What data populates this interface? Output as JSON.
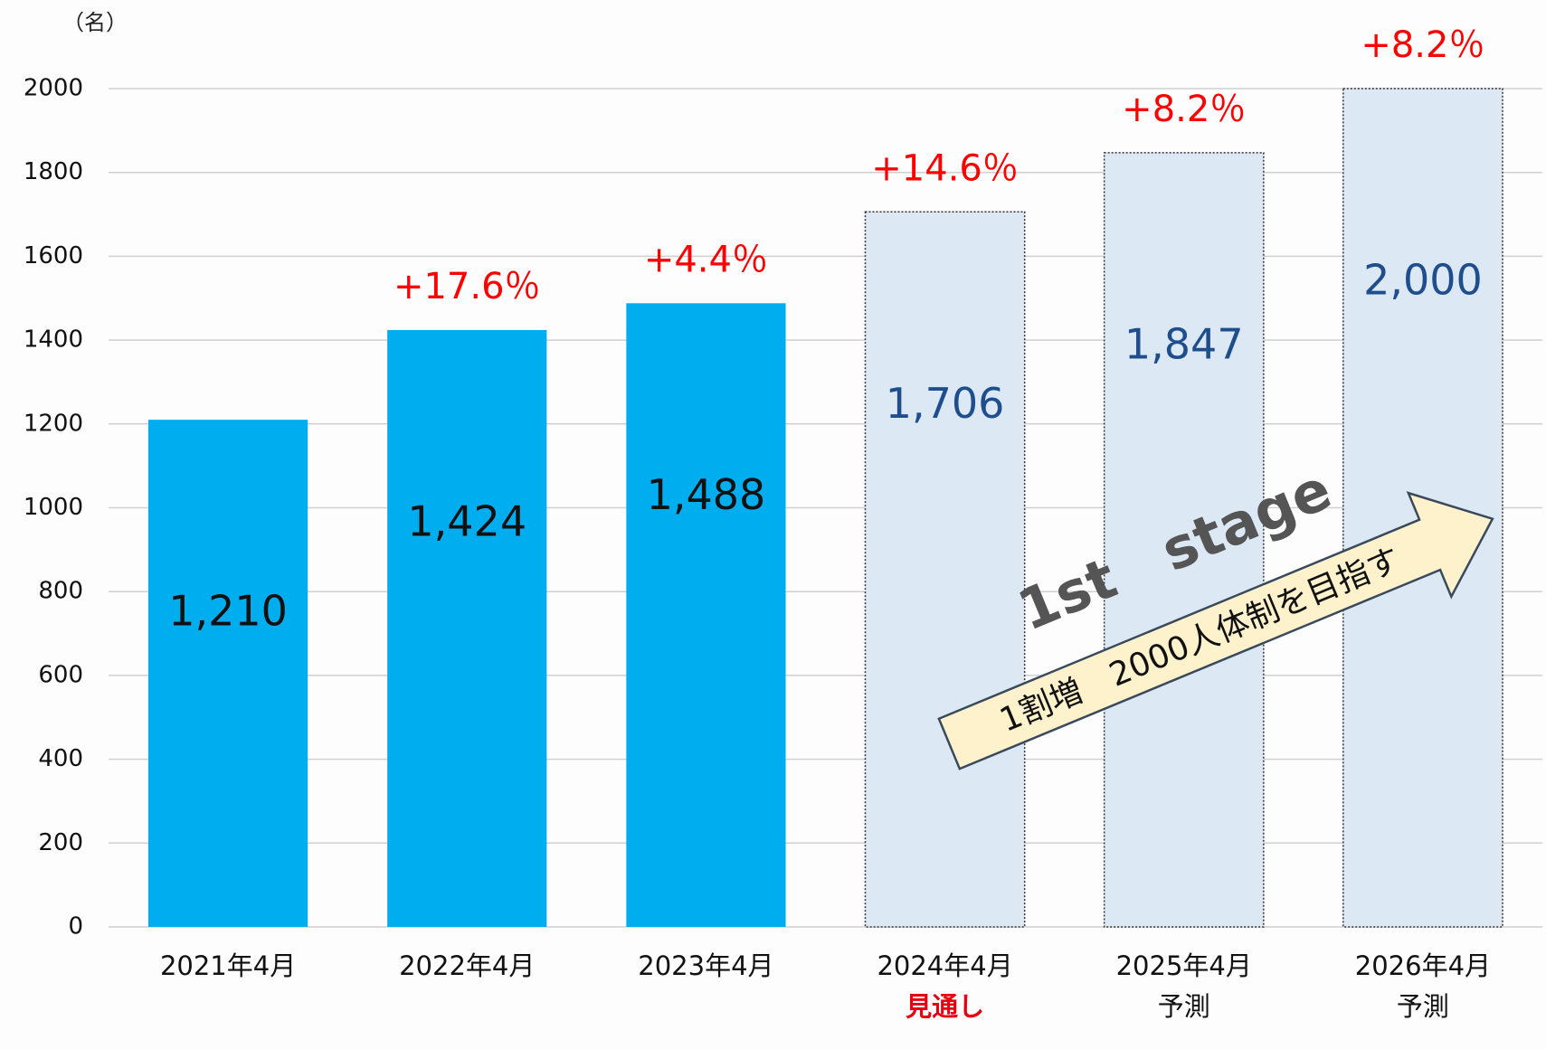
{
  "chart_data": {
    "type": "bar",
    "unit_label": "（名）",
    "categories": [
      "2021年4月",
      "2022年4月",
      "2023年4月",
      "2024年4月",
      "2025年4月",
      "2026年4月"
    ],
    "category_notes": [
      null,
      null,
      null,
      "見通し",
      "予測",
      "予測"
    ],
    "category_note_colors": [
      null,
      null,
      null,
      "#e60012",
      "#111111",
      "#111111"
    ],
    "values": [
      1210,
      1424,
      1488,
      1706,
      1847,
      2000
    ],
    "value_labels": [
      "1,210",
      "1,424",
      "1,488",
      "1,706",
      "1,847",
      "2,000"
    ],
    "growth_labels": [
      null,
      "+17.6％",
      "+4.4％",
      "+14.6％",
      "+8.2％",
      "+8.2％"
    ],
    "growth_color": "#ff0000",
    "colors": [
      "#00aeef",
      "#00aeef",
      "#00aeef",
      "#dde8f5",
      "#dde8f5",
      "#dde8f5"
    ],
    "value_label_colors": [
      "#111111",
      "#111111",
      "#111111",
      "#1f4e8c",
      "#1f4e8c",
      "#1f4e8c"
    ],
    "forecast": [
      false,
      false,
      false,
      true,
      true,
      true
    ],
    "ylim": [
      0,
      2000
    ],
    "yticks": [
      0,
      200,
      400,
      600,
      800,
      1000,
      1200,
      1400,
      1600,
      1800,
      2000
    ],
    "grid": true,
    "annotations": [
      "1st　stage",
      "1割増　2000人体制を目指す"
    ]
  }
}
